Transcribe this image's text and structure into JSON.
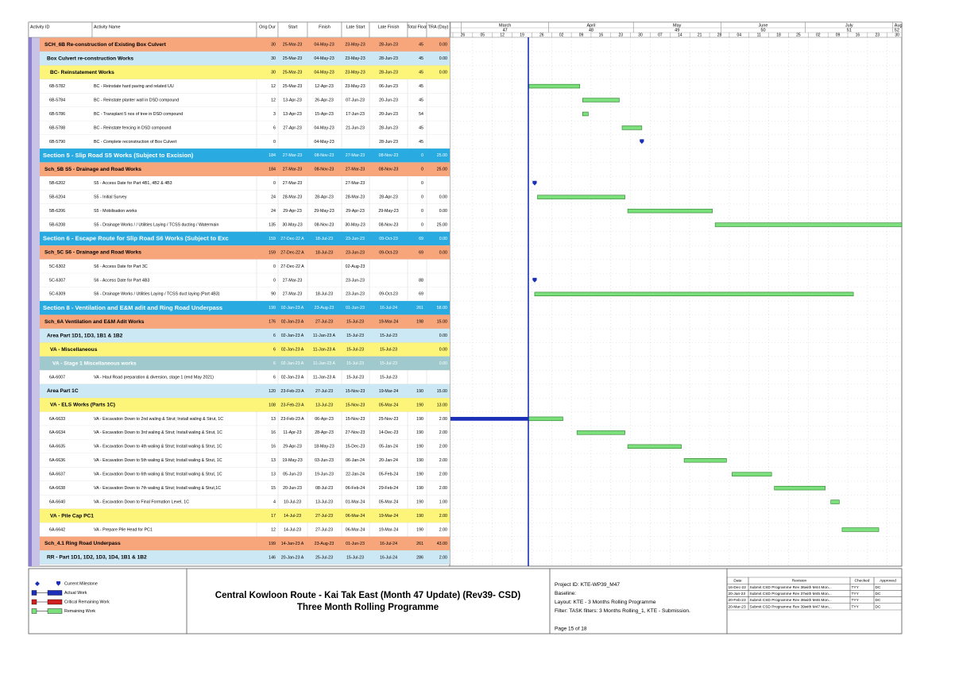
{
  "columns": [
    "Activity ID",
    "Activity Name",
    "Orig Dur",
    "Start",
    "Finish",
    "Late Start",
    "Late Finish",
    "Total Float",
    "TRA (Day)"
  ],
  "timeline": {
    "months": [
      "March",
      "April",
      "May",
      "June",
      "July",
      "Aug"
    ],
    "month_numbers": [
      "47",
      "48",
      "49",
      "50",
      "51",
      "52"
    ],
    "weeks": [
      "26",
      "05",
      "12",
      "19",
      "26",
      "02",
      "09",
      "16",
      "23",
      "30",
      "07",
      "14",
      "21",
      "28",
      "04",
      "11",
      "18",
      "25",
      "02",
      "09",
      "16",
      "23",
      "30"
    ]
  },
  "rows": [
    {
      "name": "SCH_6B Re-construction of Existing Box Culvert",
      "fill": "#f7a57b",
      "dur": 30,
      "start": "25-Mar-23",
      "finish": "04-May-23",
      "late_start": "23-May-23",
      "late_finish": "28-Jun-23",
      "float": 45,
      "tra": "0.00"
    },
    {
      "name": "Box Culvert re-construction Works",
      "fill": "#cce8f4",
      "dur": 30,
      "start": "25-Mar-23",
      "finish": "04-May-23",
      "late_start": "23-May-23",
      "late_finish": "28-Jun-23",
      "float": 45,
      "tra": "0.00"
    },
    {
      "name": "BC- Reinstatement Works",
      "fill": "#fdf57a",
      "dur": 30,
      "start": "25-Mar-23",
      "finish": "04-May-23",
      "late_start": "23-May-23",
      "late_finish": "28-Jun-23",
      "float": 45,
      "tra": "0.00"
    },
    {
      "id": "6B-5782",
      "name": "BC - Reinstate hard paving and related UU",
      "dur": 12,
      "start": "25-Mar-23",
      "finish": "12-Apr-23",
      "late_start": "23-May-23",
      "late_finish": "06-Jun-23",
      "float": 45
    },
    {
      "id": "6B-5784",
      "name": "BC - Reinstate planter wall in DSD compound",
      "dur": 12,
      "start": "13-Apr-23",
      "finish": "26-Apr-23",
      "late_start": "07-Jun-23",
      "late_finish": "20-Jun-23",
      "float": 45
    },
    {
      "id": "6B-5786",
      "name": "BC - Transplant 5 nos of tree in DSD compound",
      "dur": 3,
      "start": "13-Apr-23",
      "finish": "15-Apr-23",
      "late_start": "17-Jun-23",
      "late_finish": "20-Jun-23",
      "float": 54
    },
    {
      "id": "6B-5788",
      "name": "BC - Reinstate fencing in DSD compound",
      "dur": 6,
      "start": "27-Apr-23",
      "finish": "04-May-23",
      "late_start": "21-Jun-23",
      "late_finish": "28-Jun-23",
      "float": 45
    },
    {
      "id": "6B-5790",
      "name": "BC - Complete reconstruction of Box Culvert",
      "dur": 0,
      "finish": "04-May-23",
      "late_finish": "28-Jun-23",
      "float": 45
    },
    {
      "name": "Section 5 - Slip Road S5 Works (Subject to Excision)",
      "fill": "#29abe2",
      "text_color": "#ffffff",
      "dur": 184,
      "start": "27-Mar-23",
      "finish": "08-Nov-23",
      "late_start": "27-Mar-23",
      "late_finish": "08-Nov-23",
      "float": 0,
      "tra": "25.00"
    },
    {
      "name": "Sch_5B S5 - Drainage and Road Works",
      "fill": "#f7a57b",
      "dur": 184,
      "start": "27-Mar-23",
      "finish": "08-Nov-23",
      "late_start": "27-Mar-23",
      "late_finish": "08-Nov-23",
      "float": 0,
      "tra": "25.00"
    },
    {
      "id": "5B-6202",
      "name": "S5 - Access Date for Part 4B1, 4B2 & 4B3",
      "dur": 0,
      "start": "27-Mar-23",
      "late_start": "27-Mar-23",
      "float": 0
    },
    {
      "id": "5B-6204",
      "name": "S5 - Initial Survey",
      "dur": 24,
      "start": "28-Mar-23",
      "finish": "28-Apr-23",
      "late_start": "28-Mar-23",
      "late_finish": "28-Apr-23",
      "float": 0,
      "tra": "0.00"
    },
    {
      "id": "5B-6206",
      "name": "S5 - Mobilisation works",
      "dur": 24,
      "start": "29-Apr-23",
      "finish": "29-May-23",
      "late_start": "29-Apr-23",
      "late_finish": "29-May-23",
      "float": 0,
      "tra": "0.00"
    },
    {
      "id": "5B-6208",
      "name": "S5 - Drainage Works / / Utilities Laying / TCSS ducting / Watermain",
      "dur": 135,
      "start": "30-May-23",
      "finish": "08-Nov-23",
      "late_start": "30-May-23",
      "late_finish": "08-Nov-23",
      "float": 0,
      "tra": "25.00"
    },
    {
      "name": "Section 6 - Escape Route for Slip Road S6 Works (Subject to Exc",
      "fill": "#29abe2",
      "text_color": "#ffffff",
      "dur": 159,
      "start": "27-Dec-22 A",
      "finish": "18-Jul-23",
      "late_start": "23-Jun-23",
      "late_finish": "09-Oct-23",
      "float": 69,
      "tra": "0.00"
    },
    {
      "name": "Sch_5C S6 - Drainage and Road Works",
      "fill": "#f7a57b",
      "dur": 159,
      "start": "27-Dec-22 A",
      "finish": "18-Jul-23",
      "late_start": "23-Jun-23",
      "late_finish": "09-Oct-23",
      "float": 69,
      "tra": "0.00"
    },
    {
      "id": "5C-6302",
      "name": "S6 - Access Date for Part 3C",
      "dur": 0,
      "start": "27-Dec-22 A",
      "late_start": "02-Aug-23"
    },
    {
      "id": "5C-6307",
      "name": "S6 - Access Date for Part 4B3",
      "dur": 0,
      "start": "27-Mar-23",
      "late_start": "23-Jun-23",
      "float": 88
    },
    {
      "id": "5C-6309",
      "name": "S6 - Drainage Works / Utilities Laying / TCSS duct laying (Part 4B3)",
      "dur": 90,
      "start": "27-Mar-23",
      "finish": "18-Jul-23",
      "late_start": "23-Jun-23",
      "late_finish": "09-Oct-23",
      "float": 69
    },
    {
      "name": "Section 8 - Ventilation and E&M adit and Ring Road Underpass",
      "fill": "#29abe2",
      "text_color": "#ffffff",
      "dur": 199,
      "start": "02-Jan-23 A",
      "finish": "23-Aug-23",
      "late_start": "01-Jun-23",
      "late_finish": "16-Jul-24",
      "float": 261,
      "tra": "58.00"
    },
    {
      "name": "Sch_6A Ventilation and E&M Adit Works",
      "fill": "#f7a57b",
      "dur": 176,
      "start": "02-Jan-23 A",
      "finish": "27-Jul-23",
      "late_start": "15-Jul-23",
      "late_finish": "19-Mar-24",
      "float": 198,
      "tra": "15.00"
    },
    {
      "name": "Area Part 1D1, 1D3, 1B1 & 1B2",
      "fill": "#cce8f4",
      "dur": 6,
      "start": "02-Jan-23 A",
      "finish": "11-Jan-23 A",
      "late_start": "15-Jul-23",
      "late_finish": "15-Jul-23",
      "tra": "0.00"
    },
    {
      "name": "VA - Miscellaneous",
      "fill": "#fdf57a",
      "dur": 6,
      "start": "02-Jan-23 A",
      "finish": "11-Jan-23 A",
      "late_start": "15-Jul-23",
      "late_finish": "15-Jul-23",
      "tra": "0.00"
    },
    {
      "name": "VA - Stage 1 Miscellaneous works",
      "fill": "#9fc9cc",
      "text_color": "#ffffff",
      "dur": 6,
      "start": "02-Jan-23 A",
      "finish": "11-Jan-23 A",
      "late_start": "15-Jul-23",
      "late_finish": "15-Jul-23",
      "tra": "0.00"
    },
    {
      "id": "6A-6007",
      "name": "VA - Haul Road preparation & diversion, stage 1 (end May 2021)",
      "dur": 6,
      "start": "02-Jan-23 A",
      "finish": "11-Jan-23 A",
      "late_start": "15-Jul-23",
      "late_finish": "15-Jul-23"
    },
    {
      "name": "Area Part 1C",
      "fill": "#cce8f4",
      "dur": 120,
      "start": "23-Feb-23 A",
      "finish": "27-Jul-23",
      "late_start": "15-Nov-23",
      "late_finish": "19-Mar-24",
      "float": 190,
      "tra": "15.00"
    },
    {
      "name": "VA - ELS Works (Parts 1C)",
      "fill": "#fdf57a",
      "dur": 108,
      "start": "23-Feb-23 A",
      "finish": "13-Jul-23",
      "late_start": "15-Nov-23",
      "late_finish": "05-Mar-24",
      "float": 190,
      "tra": "13.00"
    },
    {
      "id": "6A-6633",
      "name": "VA - Excavation Down to 2nd waling & Strut; Install waling & Strut, 1C",
      "dur": 13,
      "start": "23-Feb-23 A",
      "finish": "06-Apr-23",
      "late_start": "15-Nov-23",
      "late_finish": "25-Nov-23",
      "float": 190,
      "tra": "2.00"
    },
    {
      "id": "6A-6634",
      "name": "VA - Excavation Down to 3rd waling & Strut; Install waling & Strut, 1C",
      "dur": 16,
      "start": "11-Apr-23",
      "finish": "28-Apr-23",
      "late_start": "27-Nov-23",
      "late_finish": "14-Dec-23",
      "float": 190,
      "tra": "2.00"
    },
    {
      "id": "6A-6635",
      "name": "VA - Excavation Down to 4th waling & Strut; Install waling & Strut, 1C",
      "dur": 16,
      "start": "29-Apr-23",
      "finish": "18-May-23",
      "late_start": "15-Dec-23",
      "late_finish": "05-Jan-24",
      "float": 190,
      "tra": "2.00"
    },
    {
      "id": "6A-6636",
      "name": "VA - Excavation Down to 5th waling & Strut; Install waling & Strut, 1C",
      "dur": 13,
      "start": "19-May-23",
      "finish": "03-Jun-23",
      "late_start": "06-Jan-24",
      "late_finish": "20-Jan-24",
      "float": 190,
      "tra": "2.00"
    },
    {
      "id": "6A-6637",
      "name": "VA - Excavation Down to 6th waling & Strut; Install waling & Strut, 1C",
      "dur": 13,
      "start": "05-Jun-23",
      "finish": "19-Jun-23",
      "late_start": "22-Jan-24",
      "late_finish": "05-Feb-24",
      "float": 190,
      "tra": "2.00"
    },
    {
      "id": "6A-6638",
      "name": "VA - Excavation Down to 7th waling & Strut; Install waling & Strut,1C",
      "dur": 15,
      "start": "20-Jun-23",
      "finish": "08-Jul-23",
      "late_start": "06-Feb-24",
      "late_finish": "29-Feb-24",
      "float": 190,
      "tra": "2.00"
    },
    {
      "id": "6A-6640",
      "name": "VA - Excavation Down to Final Formation Level, 1C",
      "dur": 4,
      "start": "10-Jul-23",
      "finish": "13-Jul-23",
      "late_start": "01-Mar-24",
      "late_finish": "05-Mar-24",
      "float": 190,
      "tra": "1.00"
    },
    {
      "name": "VA - Pile Cap PC1",
      "fill": "#fdf57a",
      "dur": 17,
      "start": "14-Jul-23",
      "finish": "27-Jul-23",
      "late_start": "06-Mar-24",
      "late_finish": "19-Mar-24",
      "float": 190,
      "tra": "2.00"
    },
    {
      "id": "6A-6642",
      "name": "VA - Prepare Pile Head for PC1",
      "dur": 12,
      "start": "14-Jul-23",
      "finish": "27-Jul-23",
      "late_start": "06-Mar-24",
      "late_finish": "19-Mar-24",
      "float": 190,
      "tra": "2.00"
    },
    {
      "name": "Sch_4.1 Ring Road Underpass",
      "fill": "#f7a57b",
      "dur": 199,
      "start": "14-Jan-23 A",
      "finish": "23-Aug-23",
      "late_start": "01-Jun-23",
      "late_finish": "16-Jul-24",
      "float": 261,
      "tra": "43.00"
    },
    {
      "name": "RR - Part 1D1, 1D2, 1D3, 1D4, 1B1 & 1B2",
      "fill": "#cce8f4",
      "dur": 146,
      "start": "20-Jan-23 A",
      "finish": "25-Jul-23",
      "late_start": "15-Jul-23",
      "late_finish": "16-Jul-24",
      "float": 286,
      "tra": "2.00"
    }
  ],
  "legend": [
    "Current Milestone",
    "Actual Work",
    "Critical Remaining Work",
    "Remaining Work"
  ],
  "footer": {
    "title": "Central Kowloon Route - Kai Tak East (Month 47 Update) (Rev39- CSD)",
    "subtitle": "Three Month Rolling Programme",
    "info": [
      "Project ID: KTE-WP39_M47",
      "Baseline:",
      "Layout: KTE - 3 Months Rolling Programme",
      "Filter: TASK filters: 3 Months Rolling_1, KTE - Submission."
    ],
    "page": "Page 15 of 18",
    "revisions": {
      "header": [
        "Date",
        "Revision",
        "Checked",
        "Approved"
      ],
      "rows": [
        [
          "16-Dec-22",
          "Submit CSD Programme Rev 36with M44 Mon...",
          "TYY",
          "DC"
        ],
        [
          "20-Jan-23",
          "Submit CSD Programme Rev 37with M45 Mon...",
          "TYY",
          "DC"
        ],
        [
          "20-Feb-23",
          "Submit CSD Programme Rev 38with M46 Mon...",
          "TYY",
          "DC"
        ],
        [
          "20-Mar-23",
          "Submit CSD Programme Rev 39with M47 Mon...",
          "TYY",
          "DC"
        ]
      ]
    }
  }
}
